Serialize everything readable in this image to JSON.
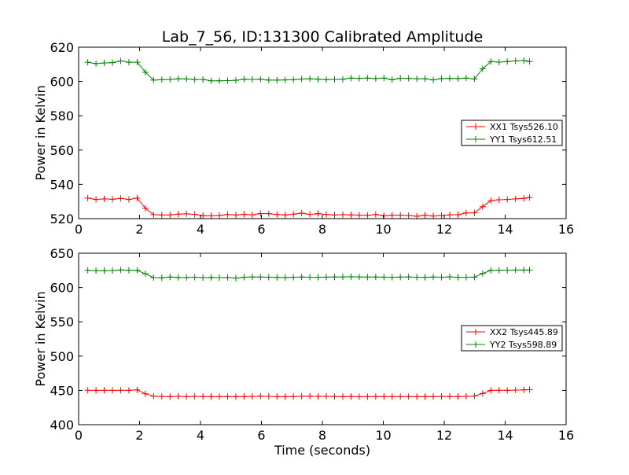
{
  "chart_data": [
    {
      "type": "line",
      "title": "Lab_7_56, ID:131300 Calibrated Amplitude",
      "xlabel": "",
      "ylabel": "Power in Kelvin",
      "xlim": [
        0,
        16
      ],
      "ylim": [
        520,
        620
      ],
      "xticks": [
        "0",
        "2",
        "4",
        "6",
        "8",
        "10",
        "12",
        "14",
        "16"
      ],
      "yticks": [
        "520",
        "540",
        "560",
        "580",
        "600",
        "620"
      ],
      "legend_position": "center-right",
      "x": [
        0.3,
        0.57,
        0.84,
        1.11,
        1.38,
        1.65,
        1.92,
        2.19,
        2.46,
        2.73,
        3.0,
        3.27,
        3.54,
        3.81,
        4.08,
        4.35,
        4.62,
        4.89,
        5.16,
        5.43,
        5.7,
        5.97,
        6.24,
        6.51,
        6.78,
        7.05,
        7.32,
        7.59,
        7.86,
        8.13,
        8.4,
        8.67,
        8.94,
        9.21,
        9.48,
        9.75,
        10.02,
        10.29,
        10.56,
        10.83,
        11.1,
        11.37,
        11.64,
        11.91,
        12.18,
        12.45,
        12.72,
        12.99,
        13.26,
        13.53,
        13.8,
        14.07,
        14.34,
        14.61,
        14.8
      ],
      "series": [
        {
          "name": "XX1 Tsys526.10",
          "color": "#ff0000",
          "values": [
            532.0,
            531.2,
            531.5,
            531.3,
            531.8,
            531.2,
            532.0,
            526.0,
            522.3,
            522.1,
            522.2,
            522.6,
            522.8,
            522.5,
            521.7,
            521.6,
            521.8,
            522.4,
            522.1,
            522.5,
            522.2,
            523.0,
            522.9,
            522.4,
            522.1,
            522.6,
            523.2,
            522.5,
            522.9,
            522.4,
            522.1,
            522.3,
            522.2,
            522.0,
            521.9,
            522.4,
            521.6,
            522.0,
            522.0,
            521.8,
            521.4,
            522.0,
            521.5,
            521.8,
            522.2,
            522.3,
            523.3,
            523.4,
            527.0,
            530.5,
            531.0,
            531.2,
            531.5,
            531.8,
            532.3
          ]
        },
        {
          "name": "YY1 Tsys612.51",
          "color": "#008000",
          "values": [
            611.2,
            610.4,
            610.8,
            611.0,
            612.0,
            611.2,
            611.3,
            605.4,
            600.8,
            601.0,
            601.2,
            601.6,
            601.5,
            601.1,
            601.2,
            600.4,
            600.4,
            600.5,
            600.7,
            601.3,
            601.2,
            601.3,
            600.8,
            600.8,
            600.9,
            601.0,
            601.4,
            601.6,
            601.3,
            601.1,
            601.2,
            601.3,
            602.0,
            601.8,
            602.0,
            601.7,
            602.0,
            601.0,
            601.9,
            601.8,
            601.6,
            601.6,
            600.9,
            601.7,
            601.8,
            601.7,
            602.0,
            601.4,
            607.4,
            611.6,
            611.3,
            611.6,
            612.0,
            612.2,
            611.6
          ]
        }
      ]
    },
    {
      "type": "line",
      "title": "",
      "xlabel": "Time (seconds)",
      "ylabel": "Power in Kelvin",
      "xlim": [
        0,
        16
      ],
      "ylim": [
        400,
        650
      ],
      "xticks": [
        "0",
        "2",
        "4",
        "6",
        "8",
        "10",
        "12",
        "14",
        "16"
      ],
      "yticks": [
        "400",
        "450",
        "500",
        "550",
        "600",
        "650"
      ],
      "legend_position": "center-right",
      "x": [
        0.3,
        0.57,
        0.84,
        1.11,
        1.38,
        1.65,
        1.92,
        2.19,
        2.46,
        2.73,
        3.0,
        3.27,
        3.54,
        3.81,
        4.08,
        4.35,
        4.62,
        4.89,
        5.16,
        5.43,
        5.7,
        5.97,
        6.24,
        6.51,
        6.78,
        7.05,
        7.32,
        7.59,
        7.86,
        8.13,
        8.4,
        8.67,
        8.94,
        9.21,
        9.48,
        9.75,
        10.02,
        10.29,
        10.56,
        10.83,
        11.1,
        11.37,
        11.64,
        11.91,
        12.18,
        12.45,
        12.72,
        12.99,
        13.26,
        13.53,
        13.8,
        14.07,
        14.34,
        14.61,
        14.8
      ],
      "series": [
        {
          "name": "XX2 Tsys445.89",
          "color": "#ff0000",
          "values": [
            450.2,
            450.0,
            450.1,
            450.0,
            450.2,
            450.1,
            450.8,
            445.0,
            441.5,
            441.2,
            440.9,
            441.4,
            440.8,
            441.2,
            441.0,
            440.9,
            440.8,
            441.0,
            440.9,
            441.0,
            441.2,
            441.5,
            441.3,
            441.0,
            440.8,
            441.0,
            441.4,
            441.6,
            441.2,
            441.4,
            441.0,
            440.9,
            441.0,
            440.8,
            440.9,
            441.0,
            441.2,
            440.8,
            440.9,
            441.0,
            440.8,
            440.9,
            441.0,
            441.2,
            441.1,
            441.0,
            441.4,
            441.8,
            445.5,
            450.0,
            450.2,
            450.1,
            450.4,
            450.8,
            451.0
          ]
        },
        {
          "name": "YY2 Tsys598.89",
          "color": "#008000",
          "values": [
            625.0,
            624.6,
            624.5,
            624.8,
            625.6,
            625.2,
            625.0,
            620.0,
            614.5,
            614.2,
            615.3,
            614.7,
            614.6,
            615.0,
            614.5,
            614.8,
            614.4,
            614.6,
            613.8,
            615.0,
            615.3,
            615.2,
            615.0,
            614.8,
            614.6,
            614.9,
            615.3,
            615.0,
            614.9,
            615.1,
            615.3,
            615.4,
            615.7,
            615.4,
            615.2,
            615.3,
            615.1,
            614.9,
            615.2,
            615.4,
            615.0,
            614.9,
            615.3,
            615.0,
            615.5,
            614.9,
            615.0,
            615.1,
            620.4,
            625.0,
            625.2,
            625.3,
            625.5,
            625.5,
            625.5
          ]
        }
      ]
    }
  ]
}
